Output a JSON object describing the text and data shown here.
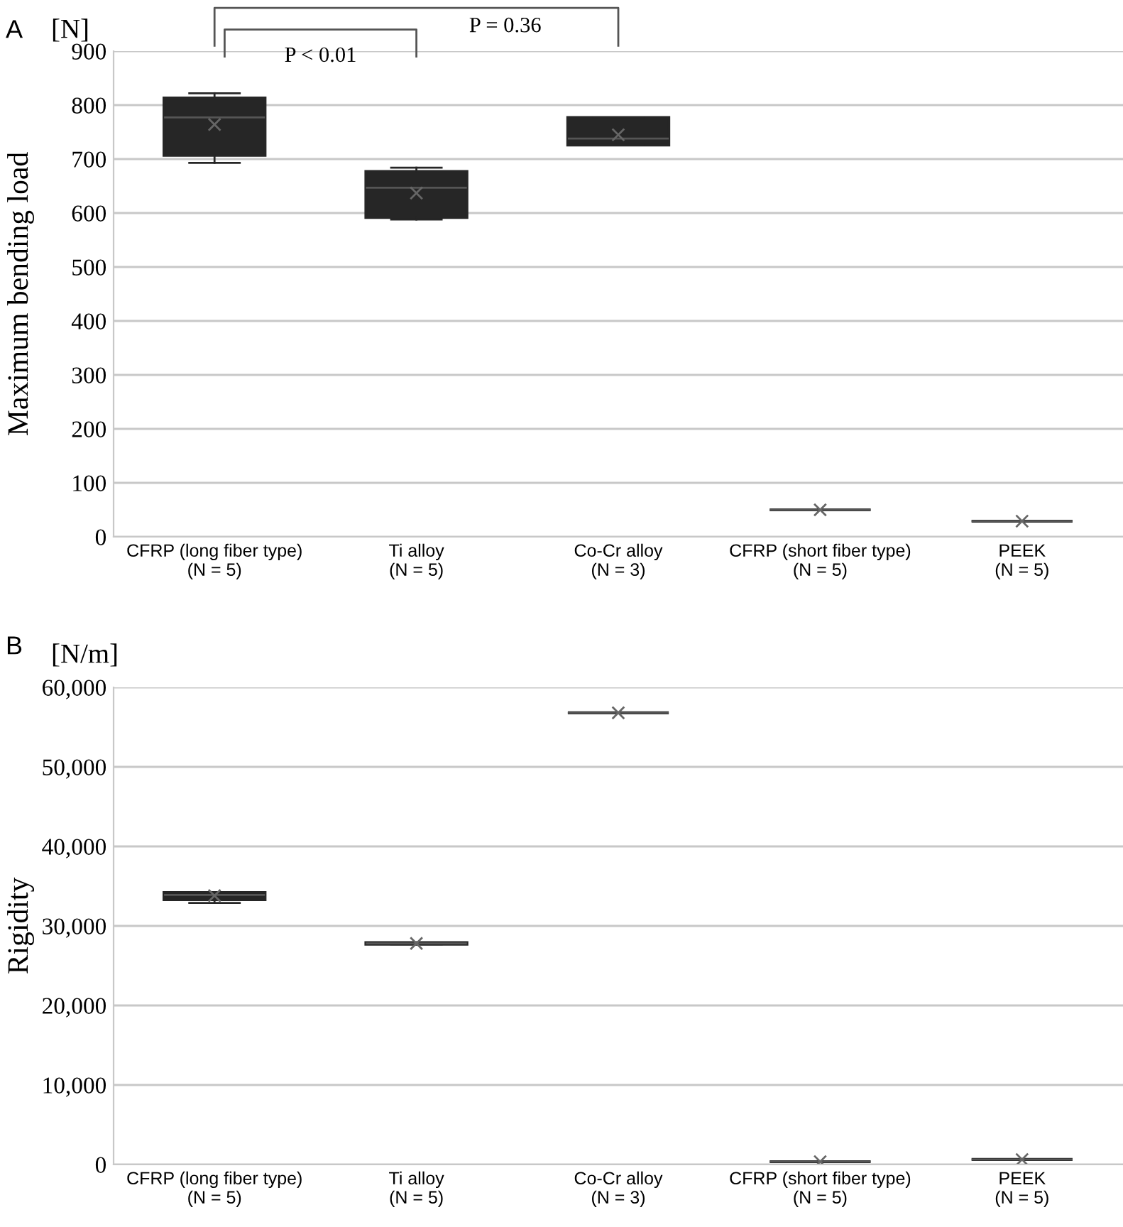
{
  "chart_data": [
    {
      "type": "box",
      "title": "A",
      "ylabel": "Maximum bending load",
      "annotations": [
        "[N]",
        "P < 0.01",
        "P = 0.36"
      ],
      "categories": [
        "CFRP (long fiber type)\n(N = 5)",
        "Ti alloy\n(N = 5)",
        "Co-Cr alloy\n(N = 3)",
        "CFRP (short fiber type)\n(N = 5)",
        "PEEK\n(N = 5)"
      ],
      "series": [
        {
          "color": "#262626",
          "boxes": [
            {
              "low": 693,
              "q1": 707,
              "median": 777,
              "q3": 813,
              "high": 822,
              "mean": 764
            },
            {
              "low": 588,
              "q1": 592,
              "median": 647,
              "q3": 677,
              "high": 684,
              "mean": 637
            },
            {
              "low": 726,
              "q1": 726,
              "median": 738,
              "q3": 777,
              "high": 777,
              "mean": 745
            },
            {
              "low": 50,
              "q1": 50,
              "median": 50,
              "q3": 50,
              "high": 50,
              "mean": 50
            },
            {
              "low": 29,
              "q1": 29,
              "median": 29,
              "q3": 29,
              "high": 29,
              "mean": 29
            }
          ]
        }
      ],
      "ylim": [
        0,
        900
      ],
      "yticks": [
        0,
        100,
        200,
        300,
        400,
        500,
        600,
        700,
        800,
        900
      ],
      "grid": "y",
      "marker": "cross"
    },
    {
      "type": "box",
      "title": "B",
      "ylabel": "Rigidity",
      "annotations": [
        "[N/m]"
      ],
      "categories": [
        "CFRP (long fiber type)\n(N = 5)",
        "Ti alloy\n(N = 5)",
        "Co-Cr alloy\n(N = 3)",
        "CFRP (short fiber type)\n(N = 5)",
        "PEEK\n(N = 5)"
      ],
      "series": [
        {
          "color": "#262626",
          "boxes": [
            {
              "low": 32900,
              "q1": 33300,
              "median": 33900,
              "q3": 34200,
              "high": 34200,
              "mean": 33800
            },
            {
              "low": 27700,
              "q1": 27700,
              "median": 27800,
              "q3": 27900,
              "high": 27900,
              "mean": 27800
            },
            {
              "low": 56800,
              "q1": 56800,
              "median": 56800,
              "q3": 56800,
              "high": 56800,
              "mean": 56800
            },
            {
              "low": 360,
              "q1": 360,
              "median": 360,
              "q3": 360,
              "high": 360,
              "mean": 360
            },
            {
              "low": 630,
              "q1": 630,
              "median": 630,
              "q3": 630,
              "high": 630,
              "mean": 630
            }
          ]
        }
      ],
      "ylim": [
        0,
        60000
      ],
      "yticks": [
        {
          "value": 0,
          "label": "0"
        },
        {
          "value": 10000,
          "label": "10,000"
        },
        {
          "value": 20000,
          "label": "20,000"
        },
        {
          "value": 30000,
          "label": "30,000"
        },
        {
          "value": 40000,
          "label": "40,000"
        },
        {
          "value": 50000,
          "label": "50,000"
        },
        {
          "value": 60000,
          "label": "60,000"
        }
      ],
      "grid": "y",
      "marker": "cross"
    }
  ]
}
